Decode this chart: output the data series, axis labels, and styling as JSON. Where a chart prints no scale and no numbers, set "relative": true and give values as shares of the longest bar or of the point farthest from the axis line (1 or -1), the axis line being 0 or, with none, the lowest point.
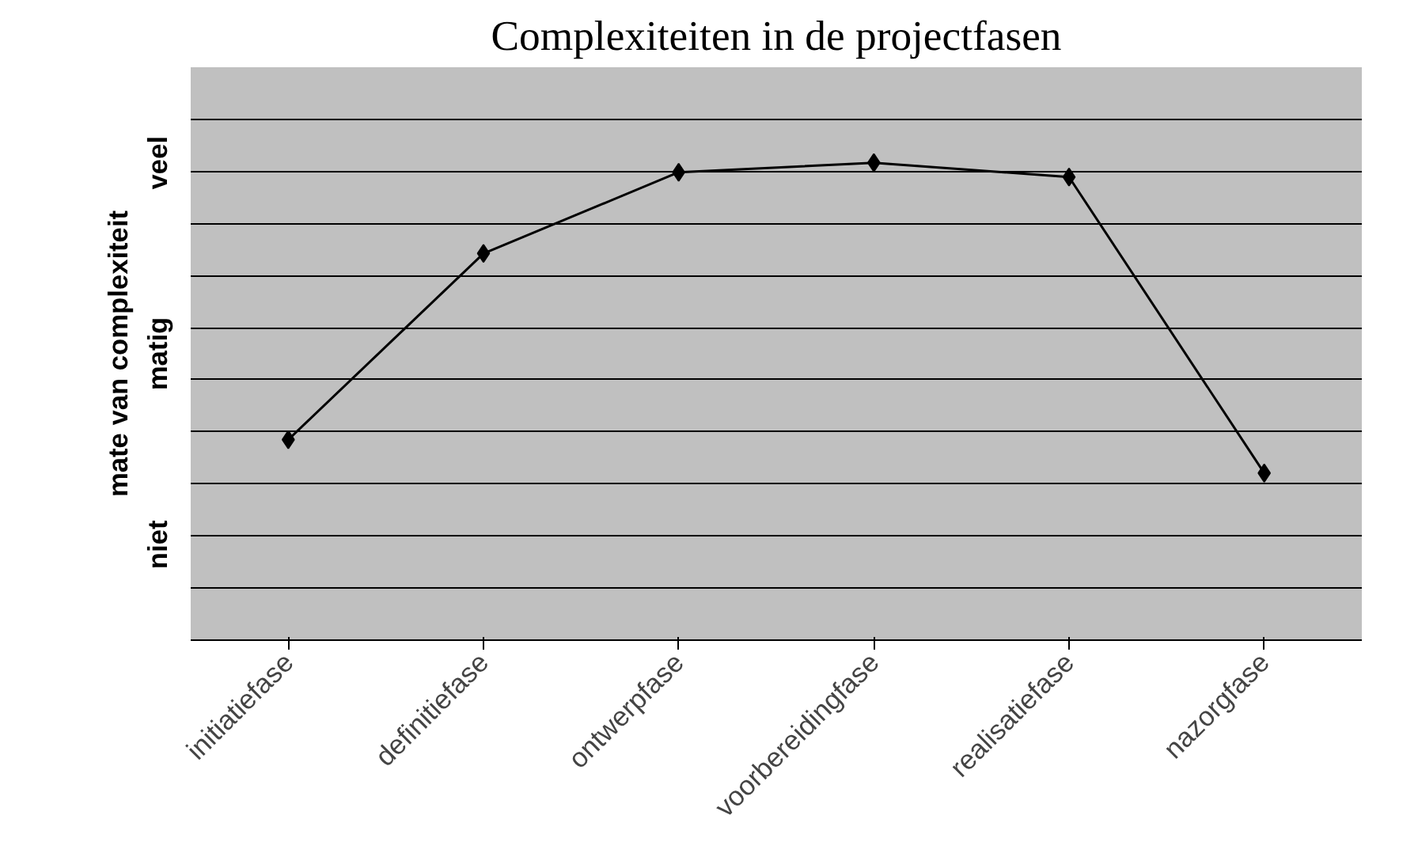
{
  "chart_data": {
    "type": "line",
    "title": "Complexiteiten in de projectfasen",
    "ylabel": "mate van complexiteit",
    "annotations": [
      "niet",
      "matig",
      "veel"
    ],
    "categories": [
      "initiatiefase",
      "definitiefase",
      "ontwerpfase",
      "voorbereidingfase",
      "realisatiefase",
      "nazorgfase"
    ],
    "series": [
      {
        "color": "#000000",
        "values": [
          0.42,
          0.81,
          0.98,
          1.0,
          0.97,
          0.35
        ]
      }
    ],
    "relative": true,
    "grid": "y",
    "marker": "diamond",
    "line_style": "solid"
  }
}
